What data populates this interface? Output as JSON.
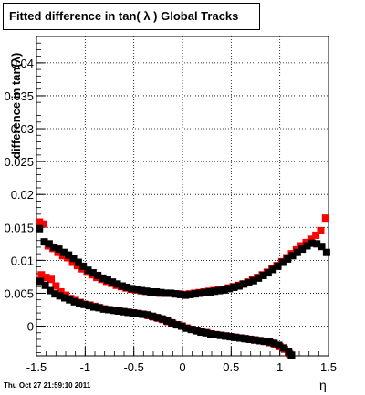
{
  "footer": "Thu Oct 27 21:59:10 2011",
  "chart_data": {
    "type": "scatter",
    "title": "Fitted difference in tan( λ )  Global Tracks",
    "xlabel": "η",
    "ylabel": "difference in tan(λ)",
    "xlim": [
      -1.5,
      1.5
    ],
    "ylim": [
      -0.0045,
      0.044
    ],
    "xticks": [
      "-1.5",
      "-1",
      "-0.5",
      "0",
      "0.5",
      "1",
      "1.5"
    ],
    "yticks": [
      "0",
      "0.005",
      "0.01",
      "0.015",
      "0.02",
      "0.025",
      "0.03",
      "0.035",
      "0.04"
    ],
    "grid": true,
    "series": [
      {
        "color": "#ff0000",
        "x": [
          -1.47,
          -1.43,
          -1.38,
          -1.33,
          -1.28,
          -1.23,
          -1.18,
          -1.13,
          -1.08,
          -1.03,
          -0.98,
          -0.93,
          -0.88,
          -0.83,
          -0.78,
          -0.73,
          -0.68,
          -0.63,
          -0.58,
          -0.53,
          -0.48,
          -0.43,
          -0.38,
          -0.33,
          -0.28,
          -0.23,
          -0.18,
          -0.13,
          -0.08,
          -0.03,
          0.02,
          0.07,
          0.12,
          0.17,
          0.22,
          0.27,
          0.32,
          0.37,
          0.42,
          0.47,
          0.52,
          0.57,
          0.62,
          0.67,
          0.72,
          0.77,
          0.82,
          0.87,
          0.92,
          0.97,
          1.02,
          1.07,
          1.12,
          1.17,
          1.22,
          1.27,
          1.32,
          1.37,
          1.42,
          1.47
        ],
        "values": [
          0.0158,
          0.0155,
          0.0122,
          0.0118,
          0.0112,
          0.0107,
          0.0104,
          0.0097,
          0.0092,
          0.0087,
          0.0082,
          0.0078,
          0.0074,
          0.0071,
          0.0068,
          0.0065,
          0.0062,
          0.006,
          0.0058,
          0.0056,
          0.0055,
          0.0054,
          0.0053,
          0.0052,
          0.0051,
          0.005,
          0.005,
          0.005,
          0.0049,
          0.0049,
          0.0048,
          0.0049,
          0.005,
          0.0051,
          0.0052,
          0.0053,
          0.0054,
          0.0055,
          0.0056,
          0.0058,
          0.006,
          0.0062,
          0.0064,
          0.0067,
          0.007,
          0.0074,
          0.0078,
          0.0082,
          0.0087,
          0.0092,
          0.0098,
          0.0104,
          0.011,
          0.0116,
          0.0122,
          0.0127,
          0.0132,
          0.0138,
          0.0145,
          0.0164
        ]
      },
      {
        "color": "#000000",
        "x": [
          -1.47,
          -1.42,
          -1.37,
          -1.32,
          -1.27,
          -1.22,
          -1.17,
          -1.12,
          -1.07,
          -1.02,
          -0.97,
          -0.92,
          -0.87,
          -0.82,
          -0.77,
          -0.72,
          -0.67,
          -0.62,
          -0.57,
          -0.52,
          -0.47,
          -0.42,
          -0.37,
          -0.32,
          -0.27,
          -0.22,
          -0.17,
          -0.12,
          -0.07,
          -0.02,
          0.03,
          0.08,
          0.13,
          0.18,
          0.23,
          0.28,
          0.33,
          0.38,
          0.43,
          0.48,
          0.53,
          0.58,
          0.63,
          0.68,
          0.73,
          0.78,
          0.83,
          0.88,
          0.93,
          0.98,
          1.03,
          1.08,
          1.13,
          1.18,
          1.23,
          1.28,
          1.33,
          1.38,
          1.43,
          1.48
        ],
        "values": [
          0.0148,
          0.0128,
          0.0125,
          0.012,
          0.0117,
          0.0112,
          0.0108,
          0.0103,
          0.0097,
          0.0091,
          0.0085,
          0.0081,
          0.0077,
          0.0073,
          0.007,
          0.0067,
          0.0064,
          0.0061,
          0.0059,
          0.0057,
          0.0056,
          0.0054,
          0.0053,
          0.0052,
          0.0052,
          0.0051,
          0.005,
          0.005,
          0.0049,
          0.0048,
          0.0047,
          0.0048,
          0.0049,
          0.005,
          0.0051,
          0.0052,
          0.0053,
          0.0054,
          0.0055,
          0.0057,
          0.0059,
          0.0061,
          0.0064,
          0.0066,
          0.0069,
          0.0073,
          0.0077,
          0.0081,
          0.0086,
          0.0091,
          0.0097,
          0.0102,
          0.0107,
          0.0112,
          0.0117,
          0.0122,
          0.0126,
          0.0125,
          0.0121,
          0.0112
        ]
      },
      {
        "color": "#ff0000",
        "x": [
          -1.45,
          -1.4,
          -1.35,
          -1.3,
          -1.25,
          -1.2,
          -1.15,
          -1.1,
          -1.05,
          -1.0,
          -0.95,
          -0.9,
          -0.85,
          -0.8,
          -0.75,
          -0.7,
          -0.65,
          -0.6,
          -0.55,
          -0.5,
          -0.45,
          -0.4,
          -0.35,
          -0.3,
          -0.25,
          -0.2,
          -0.15,
          -0.1,
          -0.05,
          0.0,
          0.05,
          0.1,
          0.15,
          0.2,
          0.25,
          0.3,
          0.35,
          0.4,
          0.45,
          0.5,
          0.55,
          0.6,
          0.65,
          0.7,
          0.75,
          0.8,
          0.85,
          0.9,
          0.95,
          1.0,
          1.05,
          1.1
        ],
        "values": [
          0.0078,
          0.0074,
          0.0071,
          0.0061,
          0.0052,
          0.0047,
          0.0042,
          0.0039,
          0.0036,
          0.0033,
          0.0032,
          0.003,
          0.0028,
          0.0026,
          0.0025,
          0.0024,
          0.0023,
          0.0022,
          0.0021,
          0.002,
          0.0019,
          0.0018,
          0.0016,
          0.0014,
          0.0012,
          0.001,
          0.0007,
          0.0004,
          0.0002,
          0.0,
          -0.0003,
          -0.0005,
          -0.0007,
          -0.0009,
          -0.001,
          -0.0012,
          -0.0013,
          -0.0014,
          -0.0015,
          -0.0016,
          -0.0017,
          -0.0018,
          -0.0019,
          -0.002,
          -0.0021,
          -0.0022,
          -0.0023,
          -0.0025,
          -0.0028,
          -0.0031,
          -0.0035,
          -0.0042
        ]
      },
      {
        "color": "#000000",
        "x": [
          -1.46,
          -1.41,
          -1.36,
          -1.31,
          -1.26,
          -1.21,
          -1.16,
          -1.11,
          -1.06,
          -1.01,
          -0.96,
          -0.91,
          -0.86,
          -0.81,
          -0.76,
          -0.71,
          -0.66,
          -0.61,
          -0.56,
          -0.51,
          -0.46,
          -0.41,
          -0.36,
          -0.31,
          -0.26,
          -0.21,
          -0.16,
          -0.11,
          -0.06,
          -0.01,
          0.04,
          0.09,
          0.14,
          0.19,
          0.24,
          0.29,
          0.34,
          0.39,
          0.44,
          0.49,
          0.54,
          0.59,
          0.64,
          0.69,
          0.74,
          0.79,
          0.84,
          0.89,
          0.94,
          0.99,
          1.04,
          1.09,
          1.12
        ],
        "values": [
          0.0068,
          0.0062,
          0.0054,
          0.0049,
          0.0046,
          0.0043,
          0.004,
          0.0037,
          0.0035,
          0.0033,
          0.0031,
          0.0029,
          0.0028,
          0.0026,
          0.0025,
          0.0024,
          0.0023,
          0.0022,
          0.0021,
          0.002,
          0.0019,
          0.0018,
          0.0017,
          0.0015,
          0.0013,
          0.0011,
          0.0008,
          0.0005,
          0.0002,
          0.0,
          -0.0003,
          -0.0005,
          -0.0007,
          -0.0009,
          -0.001,
          -0.0012,
          -0.0013,
          -0.0014,
          -0.0015,
          -0.0016,
          -0.0017,
          -0.0018,
          -0.0019,
          -0.002,
          -0.0021,
          -0.0022,
          -0.0023,
          -0.0024,
          -0.0026,
          -0.0029,
          -0.0033,
          -0.0039,
          -0.0044
        ]
      }
    ]
  }
}
